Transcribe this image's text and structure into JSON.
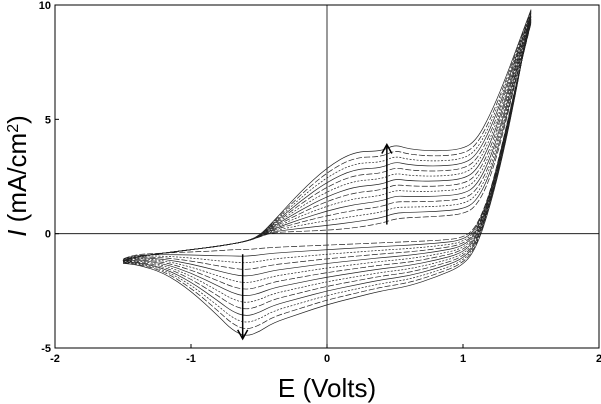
{
  "chart_data": {
    "type": "line",
    "xlabel": "E (Volts)",
    "ylabel": {
      "italic": "I",
      "main": " (mA/cm",
      "sup": "2",
      "close": ")"
    },
    "xlim": [
      -2,
      2
    ],
    "ylim": [
      -5,
      10
    ],
    "x_ticks": [
      -2,
      -1,
      0,
      1,
      2
    ],
    "y_ticks": [
      -5,
      0,
      5,
      10
    ],
    "zero_lines": true,
    "grid": false,
    "cycles": 14,
    "annotations": [
      {
        "type": "arrow",
        "from": [
          0.44,
          0.4
        ],
        "to": [
          0.44,
          3.9
        ]
      },
      {
        "type": "arrow",
        "from": [
          -0.62,
          -0.9
        ],
        "to": [
          -0.62,
          -4.6
        ]
      }
    ],
    "series_model": {
      "forward_x": [
        -1.5,
        -1.4,
        -1.2,
        -1.0,
        -0.8,
        -0.6,
        -0.5,
        -0.4,
        -0.2,
        0.0,
        0.2,
        0.4,
        0.5,
        0.6,
        0.8,
        1.0,
        1.1,
        1.2,
        1.3,
        1.4,
        1.5
      ],
      "forward_first": [
        -1.2,
        -1.0,
        -0.85,
        -0.7,
        -0.55,
        -0.35,
        -0.15,
        0.05,
        0.1,
        0.15,
        0.25,
        0.45,
        0.65,
        0.7,
        0.75,
        0.85,
        1.2,
        2.4,
        4.5,
        7.0,
        9.2
      ],
      "forward_last": [
        -1.2,
        -1.0,
        -0.85,
        -0.7,
        -0.55,
        -0.35,
        -0.1,
        0.5,
        1.8,
        2.9,
        3.6,
        3.6,
        3.9,
        3.7,
        3.6,
        3.7,
        4.1,
        5.2,
        6.6,
        8.2,
        9.8
      ],
      "reverse_x": [
        1.5,
        1.4,
        1.3,
        1.2,
        1.1,
        1.0,
        0.8,
        0.6,
        0.4,
        0.2,
        0.0,
        -0.2,
        -0.4,
        -0.5,
        -0.6,
        -0.7,
        -0.8,
        -1.0,
        -1.2,
        -1.4,
        -1.5
      ],
      "reverse_first": [
        9.2,
        6.8,
        4.2,
        1.8,
        0.3,
        -0.2,
        -0.3,
        -0.35,
        -0.4,
        -0.45,
        -0.5,
        -0.55,
        -0.6,
        -0.65,
        -0.7,
        -0.7,
        -0.75,
        -0.8,
        -0.85,
        -0.9,
        -1.1
      ],
      "reverse_last": [
        9.8,
        6.5,
        3.6,
        1.2,
        -0.6,
        -1.4,
        -1.9,
        -2.3,
        -2.5,
        -2.8,
        -3.1,
        -3.5,
        -3.9,
        -4.3,
        -4.5,
        -4.2,
        -3.6,
        -2.5,
        -1.7,
        -1.35,
        -1.3
      ]
    }
  }
}
